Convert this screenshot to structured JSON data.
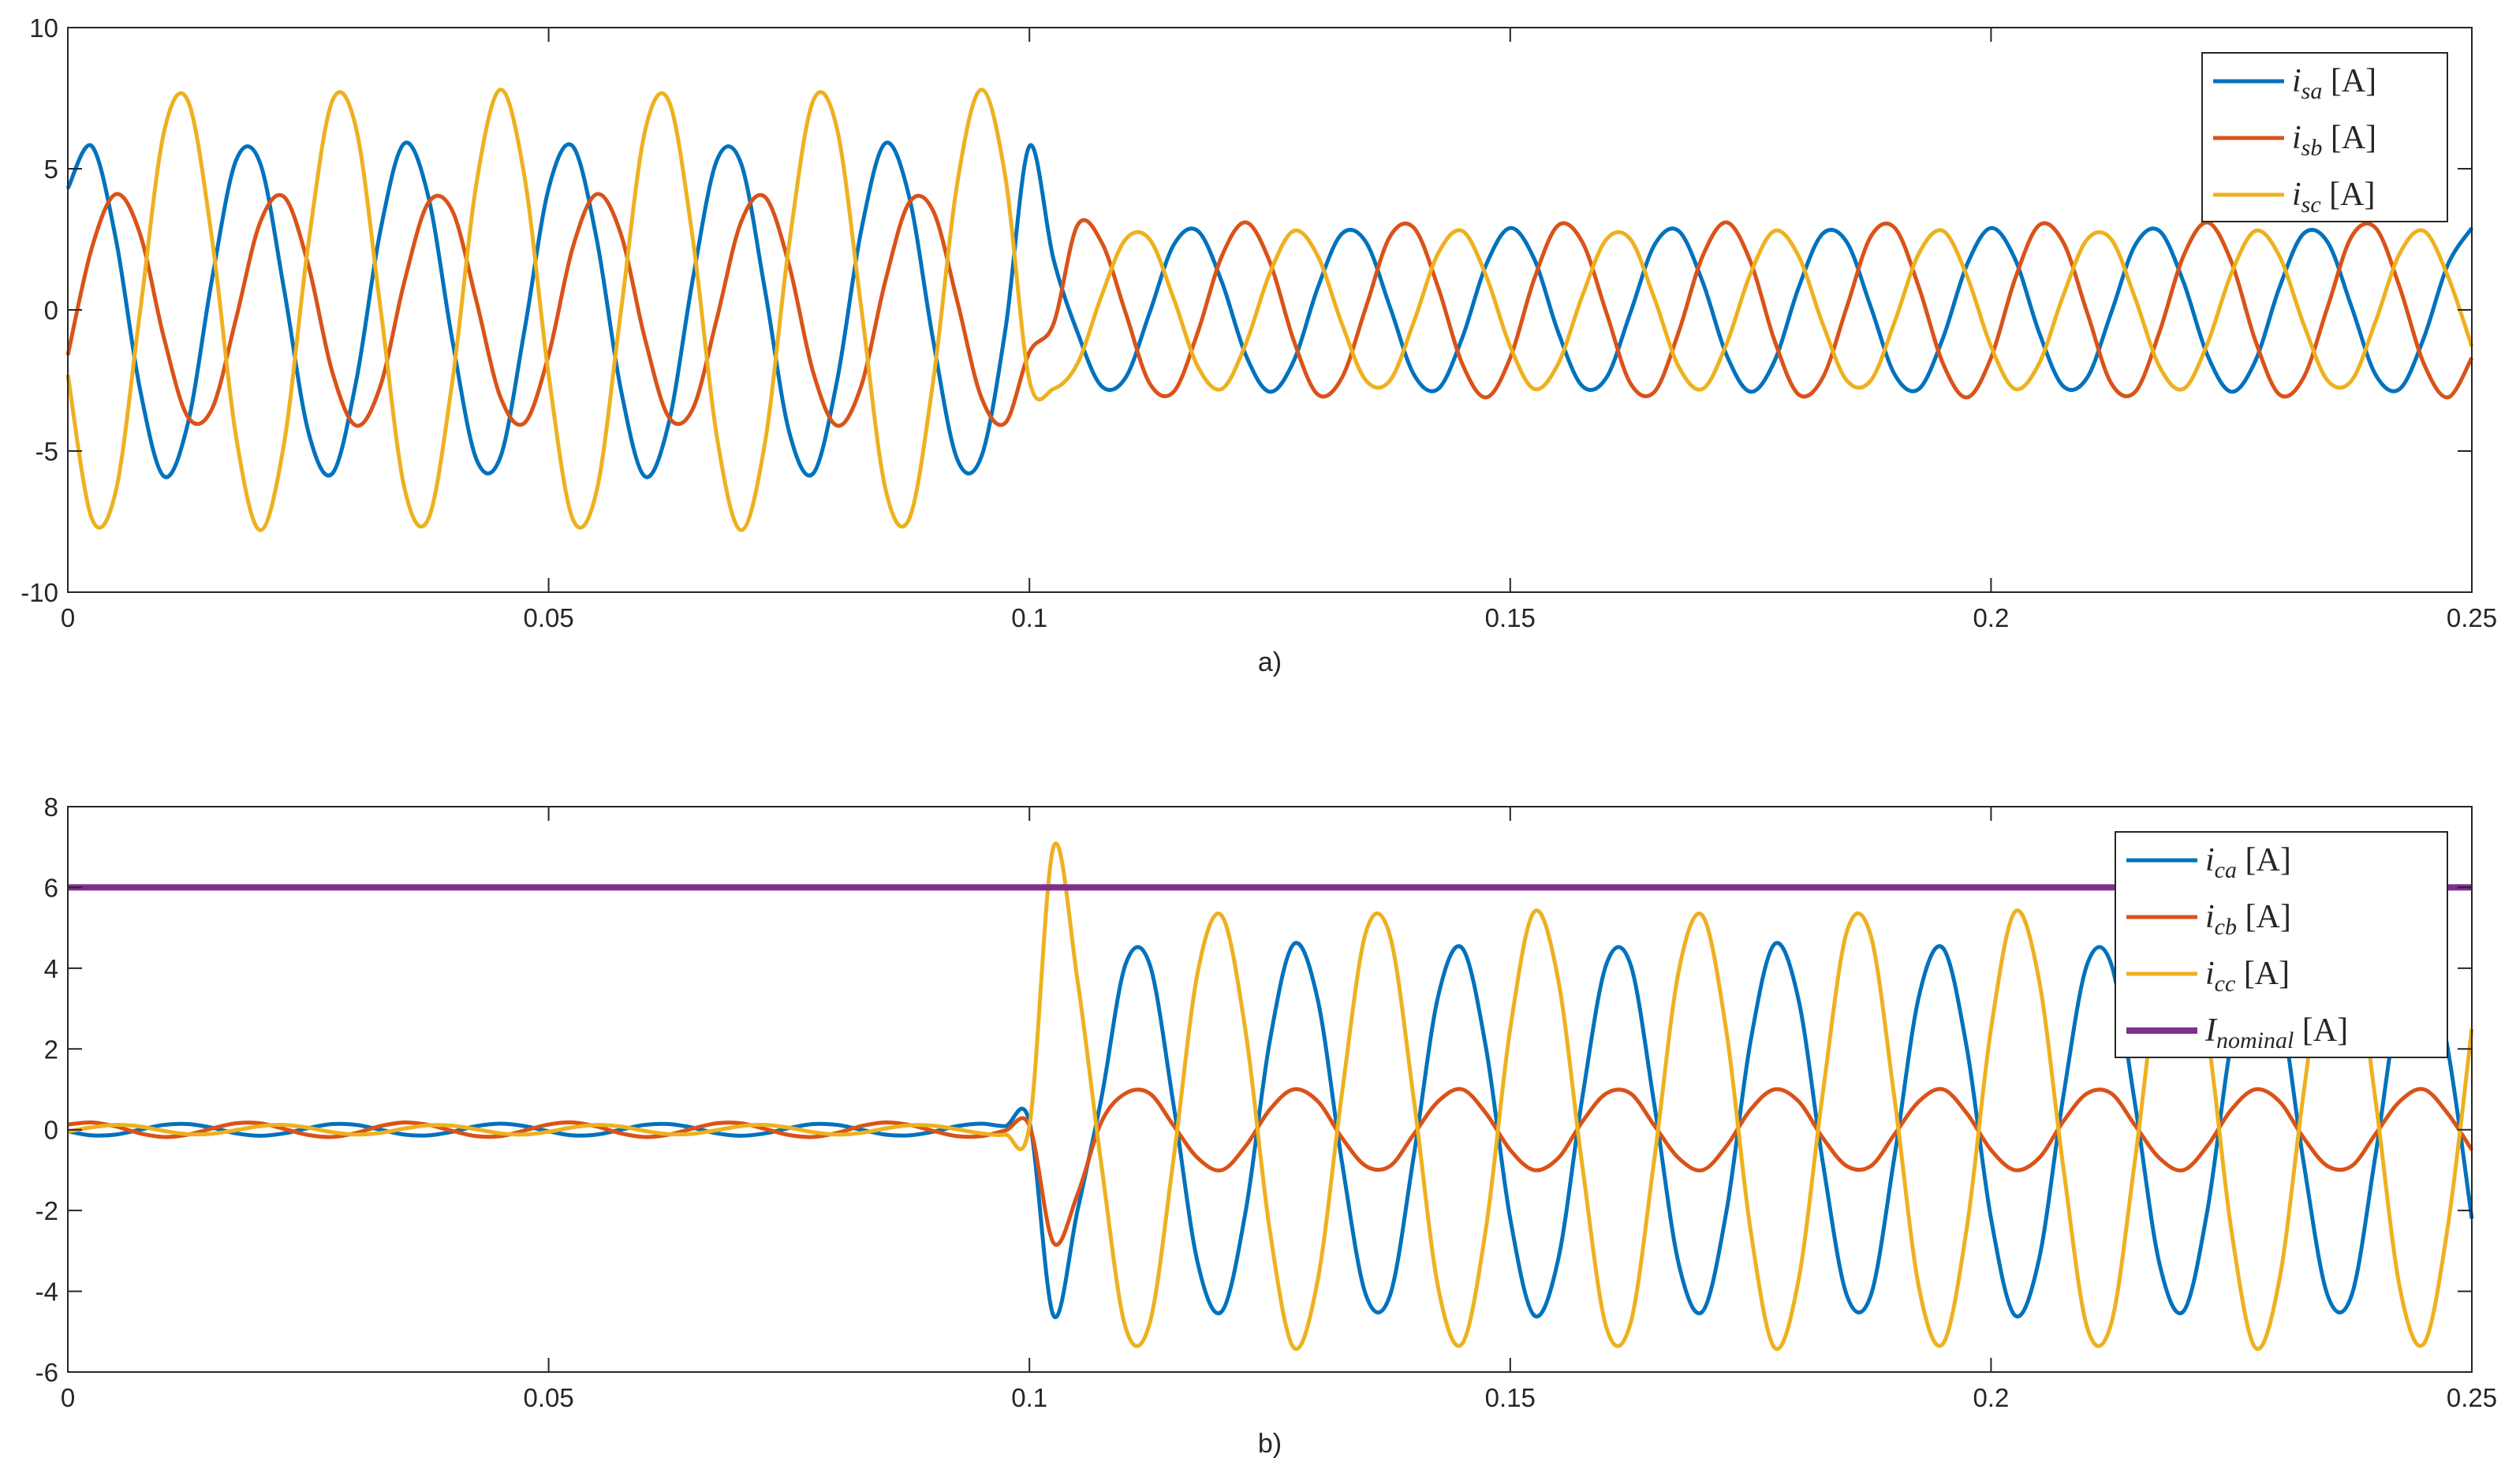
{
  "chart_data": [
    {
      "type": "line",
      "caption": "a)",
      "legend": "northeast",
      "grid": false,
      "xlim": [
        0,
        0.25
      ],
      "xticks": [
        0,
        0.05,
        0.1,
        0.15,
        0.2,
        0.25
      ],
      "ylim": [
        -10,
        10
      ],
      "yticks": [
        -10,
        -5,
        0,
        5,
        10
      ],
      "x": [
        0,
        0.0025,
        0.005,
        0.0075,
        0.01,
        0.0125,
        0.015,
        0.0175,
        0.02,
        0.0225,
        0.025,
        0.0275,
        0.03,
        0.0325,
        0.035,
        0.0375,
        0.04,
        0.0425,
        0.045,
        0.0475,
        0.05,
        0.0525,
        0.055,
        0.0575,
        0.06,
        0.0625,
        0.065,
        0.0675,
        0.07,
        0.0725,
        0.075,
        0.0775,
        0.08,
        0.0825,
        0.085,
        0.0875,
        0.09,
        0.0925,
        0.095,
        0.0975,
        0.1,
        0.1025,
        0.105,
        0.1075,
        0.11,
        0.1125,
        0.115,
        0.1175,
        0.12,
        0.1225,
        0.125,
        0.1275,
        0.13,
        0.1325,
        0.135,
        0.1375,
        0.14,
        0.1425,
        0.145,
        0.1475,
        0.15,
        0.1525,
        0.155,
        0.1575,
        0.16,
        0.1625,
        0.165,
        0.1675,
        0.17,
        0.1725,
        0.175,
        0.1775,
        0.18,
        0.1825,
        0.185,
        0.1875,
        0.19,
        0.1925,
        0.195,
        0.1975,
        0.2,
        0.2025,
        0.205,
        0.2075,
        0.21,
        0.2125,
        0.215,
        0.2175,
        0.22,
        0.2225,
        0.225,
        0.2275,
        0.23,
        0.2325,
        0.235,
        0.2375,
        0.24,
        0.2425,
        0.245,
        0.2475,
        0.25
      ],
      "series": [
        {
          "name": "isa [A]",
          "color": "#0072BD",
          "values": [
            4.3,
            5.8,
            2.5,
            -2.8,
            -5.9,
            -4.0,
            1.1,
            5.3,
            5.2,
            0.7,
            -4.3,
            -5.8,
            -2.5,
            2.8,
            5.9,
            4.0,
            -1.1,
            -5.3,
            -5.2,
            -0.7,
            4.3,
            5.8,
            2.5,
            -2.8,
            -5.9,
            -4.0,
            1.1,
            5.3,
            5.2,
            0.7,
            -4.3,
            -5.8,
            -2.5,
            2.8,
            5.9,
            4.0,
            -1.1,
            -5.3,
            -5.2,
            -0.7,
            5.8,
            1.8,
            -0.8,
            -2.7,
            -2.4,
            -0.1,
            2.3,
            2.8,
            1.0,
            -1.6,
            -2.9,
            -1.8,
            0.8,
            2.7,
            2.4,
            0.1,
            -2.3,
            -2.8,
            -1.0,
            1.6,
            2.9,
            1.8,
            -0.8,
            -2.7,
            -2.4,
            -0.1,
            2.3,
            2.8,
            1.0,
            -1.6,
            -2.9,
            -1.8,
            0.8,
            2.7,
            2.4,
            0.1,
            -2.3,
            -2.8,
            -1.0,
            1.6,
            2.9,
            1.8,
            -0.8,
            -2.7,
            -2.4,
            -0.1,
            2.3,
            2.8,
            1.0,
            -1.6,
            -2.9,
            -1.8,
            0.8,
            2.7,
            2.4,
            0.1,
            -2.3,
            -2.8,
            -1.0,
            1.6,
            2.9
          ]
        },
        {
          "name": "isb [A]",
          "color": "#D95319",
          "values": [
            -1.6,
            2.2,
            4.1,
            2.7,
            -1.0,
            -3.8,
            -3.5,
            -0.3,
            3.1,
            4.0,
            1.6,
            -2.2,
            -4.1,
            -2.7,
            1.0,
            3.8,
            3.5,
            0.3,
            -3.1,
            -4.0,
            -1.6,
            2.2,
            4.1,
            2.7,
            -1.0,
            -3.8,
            -3.5,
            -0.3,
            3.1,
            4.0,
            1.6,
            -2.2,
            -4.1,
            -2.7,
            1.0,
            3.8,
            3.5,
            0.3,
            -3.1,
            -4.0,
            -1.5,
            -0.5,
            3.0,
            2.4,
            -0.1,
            -2.6,
            -2.9,
            -0.8,
            1.9,
            3.1,
            1.7,
            -1.1,
            -3.0,
            -2.4,
            0.1,
            2.6,
            2.9,
            0.8,
            -1.9,
            -3.1,
            -1.7,
            1.1,
            3.0,
            2.4,
            -0.1,
            -2.6,
            -2.9,
            -0.8,
            1.9,
            3.1,
            1.7,
            -1.1,
            -3.0,
            -2.4,
            0.1,
            2.6,
            2.9,
            0.8,
            -1.9,
            -3.1,
            -1.7,
            1.1,
            3.0,
            2.4,
            -0.1,
            -2.6,
            -2.9,
            -0.8,
            1.9,
            3.1,
            1.7,
            -1.1,
            -3.0,
            -2.4,
            0.1,
            2.6,
            2.9,
            0.8,
            -1.9,
            -3.1,
            -1.7
          ]
        },
        {
          "name": "isc [A]",
          "color": "#EDB120",
          "values": [
            -2.3,
            -7.4,
            -6.4,
            -0.1,
            6.3,
            7.4,
            2.5,
            -4.5,
            -7.8,
            -4.7,
            2.3,
            7.4,
            6.4,
            0.1,
            -6.3,
            -7.4,
            -2.5,
            4.5,
            7.8,
            4.7,
            -2.3,
            -7.4,
            -6.4,
            -0.1,
            6.3,
            7.4,
            2.5,
            -4.5,
            -7.8,
            -4.7,
            2.3,
            7.4,
            6.4,
            0.1,
            -6.3,
            -7.4,
            -2.5,
            4.5,
            7.8,
            4.7,
            -2.5,
            -2.8,
            -1.9,
            0.5,
            2.5,
            2.5,
            0.4,
            -2.0,
            -2.8,
            -1.2,
            1.3,
            2.8,
            1.9,
            -0.5,
            -2.5,
            -2.5,
            -0.4,
            2.0,
            2.8,
            1.2,
            -1.3,
            -2.8,
            -1.9,
            0.5,
            2.5,
            2.5,
            0.4,
            -2.0,
            -2.8,
            -1.2,
            1.3,
            2.8,
            1.9,
            -0.5,
            -2.5,
            -2.5,
            -0.4,
            2.0,
            2.8,
            1.2,
            -1.3,
            -2.8,
            -1.9,
            0.5,
            2.5,
            2.5,
            0.4,
            -2.0,
            -2.8,
            -1.2,
            1.3,
            2.8,
            1.9,
            -0.5,
            -2.5,
            -2.5,
            -0.4,
            2.0,
            2.8,
            1.2,
            -1.3
          ]
        }
      ]
    },
    {
      "type": "line",
      "caption": "b)",
      "legend": "northeast",
      "grid": false,
      "xlim": [
        0,
        0.25
      ],
      "xticks": [
        0,
        0.05,
        0.1,
        0.15,
        0.2,
        0.25
      ],
      "ylim": [
        -6,
        8
      ],
      "yticks": [
        -6,
        -4,
        -2,
        0,
        2,
        4,
        6,
        8
      ],
      "x": [
        0,
        0.0025,
        0.005,
        0.0075,
        0.01,
        0.0125,
        0.015,
        0.0175,
        0.02,
        0.0225,
        0.025,
        0.0275,
        0.03,
        0.0325,
        0.035,
        0.0375,
        0.04,
        0.0425,
        0.045,
        0.0475,
        0.05,
        0.0525,
        0.055,
        0.0575,
        0.06,
        0.0625,
        0.065,
        0.0675,
        0.07,
        0.0725,
        0.075,
        0.0775,
        0.08,
        0.0825,
        0.085,
        0.0875,
        0.09,
        0.0925,
        0.095,
        0.0975,
        0.1,
        0.1025,
        0.105,
        0.1075,
        0.11,
        0.1125,
        0.115,
        0.1175,
        0.12,
        0.1225,
        0.125,
        0.1275,
        0.13,
        0.1325,
        0.135,
        0.1375,
        0.14,
        0.1425,
        0.145,
        0.1475,
        0.15,
        0.1525,
        0.155,
        0.1575,
        0.16,
        0.1625,
        0.165,
        0.1675,
        0.17,
        0.1725,
        0.175,
        0.1775,
        0.18,
        0.1825,
        0.185,
        0.1875,
        0.19,
        0.1925,
        0.195,
        0.1975,
        0.2,
        0.2025,
        0.205,
        0.2075,
        0.21,
        0.2125,
        0.215,
        0.2175,
        0.22,
        0.2225,
        0.225,
        0.2275,
        0.23,
        0.2325,
        0.235,
        0.2375,
        0.24,
        0.2425,
        0.245,
        0.2475,
        0.25
      ],
      "series": [
        {
          "name": "ica [A]",
          "color": "#0072BD",
          "values": [
            -0.04,
            -0.14,
            -0.12,
            0,
            0.12,
            0.14,
            0.05,
            -0.09,
            -0.15,
            -0.09,
            0.04,
            0.14,
            0.12,
            0,
            -0.12,
            -0.14,
            -0.05,
            0.09,
            0.15,
            0.09,
            -0.04,
            -0.14,
            -0.12,
            0,
            0.12,
            0.14,
            0.05,
            -0.09,
            -0.15,
            -0.09,
            0.04,
            0.14,
            0.12,
            0,
            -0.12,
            -0.14,
            -0.05,
            0.09,
            0.15,
            0.09,
            0.2,
            -4.6,
            -2.0,
            0.8,
            4.1,
            4.1,
            0.6,
            -3.3,
            -4.5,
            -2.0,
            2.2,
            4.6,
            3.2,
            -0.8,
            -4.1,
            -4.1,
            -0.6,
            3.3,
            4.5,
            2.0,
            -2.2,
            -4.6,
            -3.2,
            0.8,
            4.1,
            4.1,
            0.6,
            -3.3,
            -4.5,
            -2.0,
            2.2,
            4.6,
            3.2,
            -0.8,
            -4.1,
            -4.1,
            -0.6,
            3.3,
            4.5,
            2.0,
            -2.2,
            -4.6,
            -3.2,
            0.8,
            4.1,
            4.1,
            0.6,
            -3.3,
            -4.5,
            -2.0,
            2.2,
            4.6,
            3.2,
            -0.8,
            -4.1,
            -4.1,
            -0.6,
            3.3,
            4.5,
            2.0,
            -2.2
          ]
        },
        {
          "name": "icb [A]",
          "color": "#D95319",
          "values": [
            0.13,
            0.18,
            0.08,
            -0.09,
            -0.18,
            -0.12,
            0.03,
            0.16,
            0.16,
            0.02,
            -0.13,
            -0.18,
            -0.08,
            0.09,
            0.18,
            0.12,
            -0.03,
            -0.16,
            -0.16,
            -0.02,
            0.13,
            0.18,
            0.08,
            -0.09,
            -0.18,
            -0.12,
            0.03,
            0.16,
            0.16,
            0.02,
            -0.13,
            -0.18,
            -0.08,
            0.09,
            0.18,
            0.12,
            -0.03,
            -0.16,
            -0.16,
            -0.02,
            0.1,
            -2.8,
            -1.6,
            0.2,
            0.9,
            0.9,
            0.1,
            -0.7,
            -1.0,
            -0.4,
            0.5,
            1.0,
            0.7,
            -0.2,
            -0.9,
            -0.9,
            -0.1,
            0.7,
            1.0,
            0.4,
            -0.5,
            -1.0,
            -0.7,
            0.2,
            0.9,
            0.9,
            0.1,
            -0.7,
            -1.0,
            -0.4,
            0.5,
            1.0,
            0.7,
            -0.2,
            -0.9,
            -0.9,
            -0.1,
            0.7,
            1.0,
            0.4,
            -0.5,
            -1.0,
            -0.7,
            0.2,
            0.9,
            0.9,
            0.1,
            -0.7,
            -1.0,
            -0.4,
            0.5,
            1.0,
            0.7,
            -0.2,
            -0.9,
            -0.9,
            -0.1,
            0.7,
            1.0,
            0.4,
            -0.5
          ]
        },
        {
          "name": "icc [A]",
          "color": "#EDB120",
          "values": [
            -0.05,
            0.06,
            0.12,
            0.08,
            -0.03,
            -0.11,
            -0.1,
            -0.01,
            0.09,
            0.12,
            0.05,
            -0.06,
            -0.12,
            -0.08,
            0.03,
            0.11,
            0.1,
            0.01,
            -0.09,
            -0.12,
            -0.05,
            0.06,
            0.12,
            0.08,
            -0.03,
            -0.11,
            -0.1,
            -0.01,
            0.09,
            0.12,
            0.05,
            -0.06,
            -0.12,
            -0.08,
            0.03,
            0.11,
            0.1,
            0.01,
            -0.09,
            -0.12,
            0.1,
            7.0,
            3.7,
            -0.9,
            -4.9,
            -4.8,
            -0.7,
            3.9,
            5.3,
            2.4,
            -2.5,
            -5.4,
            -3.7,
            0.9,
            4.9,
            4.8,
            0.7,
            -3.9,
            -5.3,
            -2.4,
            2.5,
            5.4,
            3.7,
            -0.9,
            -4.9,
            -4.8,
            -0.7,
            3.9,
            5.3,
            2.4,
            -2.5,
            -5.4,
            -3.7,
            0.9,
            4.9,
            4.8,
            0.7,
            -3.9,
            -5.3,
            -2.4,
            2.5,
            5.4,
            3.7,
            -0.9,
            -4.9,
            -4.8,
            -0.7,
            3.9,
            5.3,
            2.4,
            -2.5,
            -5.4,
            -3.7,
            0.9,
            4.9,
            4.8,
            0.7,
            -3.9,
            -5.3,
            -2.4,
            2.5
          ]
        },
        {
          "name": "Inominal [A]",
          "color": "#7E2F8E",
          "values": [
            6,
            6,
            6,
            6,
            6,
            6,
            6,
            6,
            6,
            6,
            6,
            6,
            6,
            6,
            6,
            6,
            6,
            6,
            6,
            6,
            6,
            6,
            6,
            6,
            6,
            6,
            6,
            6,
            6,
            6,
            6,
            6,
            6,
            6,
            6,
            6,
            6,
            6,
            6,
            6,
            6,
            6,
            6,
            6,
            6,
            6,
            6,
            6,
            6,
            6,
            6,
            6,
            6,
            6,
            6,
            6,
            6,
            6,
            6,
            6,
            6,
            6,
            6,
            6,
            6,
            6,
            6,
            6,
            6,
            6,
            6,
            6,
            6,
            6,
            6,
            6,
            6,
            6,
            6,
            6,
            6,
            6,
            6,
            6,
            6,
            6,
            6,
            6,
            6,
            6,
            6,
            6,
            6,
            6,
            6,
            6,
            6,
            6,
            6,
            6,
            6
          ]
        }
      ]
    }
  ]
}
